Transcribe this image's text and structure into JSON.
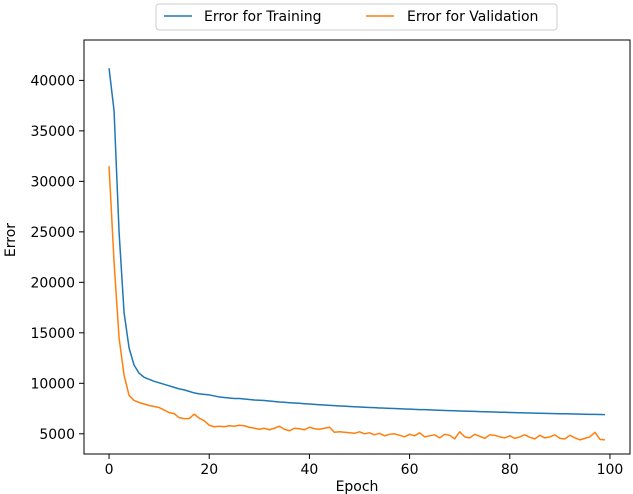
{
  "chart_data": {
    "type": "line",
    "xlabel": "Epoch",
    "ylabel": "Error",
    "xlim": [
      -5,
      104
    ],
    "ylim": [
      3000,
      44000
    ],
    "xticks": [
      0,
      20,
      40,
      60,
      80,
      100
    ],
    "yticks": [
      5000,
      10000,
      15000,
      20000,
      25000,
      30000,
      35000,
      40000
    ],
    "grid": false,
    "legend_position": "top-center",
    "series": [
      {
        "name": "Error for Training",
        "color": "#1f77b4",
        "x": [
          0,
          1,
          2,
          3,
          4,
          5,
          6,
          7,
          8,
          9,
          10,
          11,
          12,
          13,
          14,
          15,
          16,
          17,
          18,
          19,
          20,
          21,
          22,
          23,
          24,
          25,
          26,
          27,
          28,
          29,
          30,
          31,
          32,
          33,
          34,
          35,
          36,
          37,
          38,
          39,
          40,
          41,
          42,
          43,
          44,
          45,
          46,
          47,
          48,
          49,
          50,
          51,
          52,
          53,
          54,
          55,
          56,
          57,
          58,
          59,
          60,
          61,
          62,
          63,
          64,
          65,
          66,
          67,
          68,
          69,
          70,
          71,
          72,
          73,
          74,
          75,
          76,
          77,
          78,
          79,
          80,
          81,
          82,
          83,
          84,
          85,
          86,
          87,
          88,
          89,
          90,
          91,
          92,
          93,
          94,
          95,
          96,
          97,
          98,
          99
        ],
        "values": [
          41200,
          37000,
          25000,
          17000,
          13500,
          11800,
          11000,
          10600,
          10400,
          10200,
          10050,
          9900,
          9750,
          9600,
          9450,
          9350,
          9200,
          9050,
          8950,
          8900,
          8850,
          8750,
          8650,
          8600,
          8550,
          8500,
          8500,
          8450,
          8400,
          8350,
          8320,
          8300,
          8250,
          8200,
          8150,
          8120,
          8080,
          8050,
          8020,
          7980,
          7950,
          7920,
          7880,
          7850,
          7820,
          7790,
          7760,
          7740,
          7710,
          7680,
          7660,
          7630,
          7610,
          7590,
          7560,
          7540,
          7520,
          7500,
          7480,
          7460,
          7440,
          7420,
          7400,
          7390,
          7370,
          7350,
          7330,
          7310,
          7300,
          7280,
          7260,
          7250,
          7230,
          7220,
          7200,
          7190,
          7170,
          7160,
          7140,
          7130,
          7110,
          7100,
          7090,
          7070,
          7060,
          7050,
          7030,
          7020,
          7010,
          7000,
          6990,
          6980,
          6970,
          6960,
          6950,
          6940,
          6930,
          6920,
          6910,
          6900
        ]
      },
      {
        "name": "Error for Validation",
        "color": "#ff7f0e",
        "x": [
          0,
          1,
          2,
          3,
          4,
          5,
          6,
          7,
          8,
          9,
          10,
          11,
          12,
          13,
          14,
          15,
          16,
          17,
          18,
          19,
          20,
          21,
          22,
          23,
          24,
          25,
          26,
          27,
          28,
          29,
          30,
          31,
          32,
          33,
          34,
          35,
          36,
          37,
          38,
          39,
          40,
          41,
          42,
          43,
          44,
          45,
          46,
          47,
          48,
          49,
          50,
          51,
          52,
          53,
          54,
          55,
          56,
          57,
          58,
          59,
          60,
          61,
          62,
          63,
          64,
          65,
          66,
          67,
          68,
          69,
          70,
          71,
          72,
          73,
          74,
          75,
          76,
          77,
          78,
          79,
          80,
          81,
          82,
          83,
          84,
          85,
          86,
          87,
          88,
          89,
          90,
          91,
          92,
          93,
          94,
          95,
          96,
          97,
          98,
          99
        ],
        "values": [
          31500,
          22000,
          14500,
          10800,
          8800,
          8300,
          8100,
          7950,
          7800,
          7700,
          7600,
          7350,
          7100,
          7000,
          6600,
          6500,
          6500,
          6950,
          6550,
          6300,
          5850,
          5700,
          5750,
          5700,
          5800,
          5750,
          5850,
          5800,
          5650,
          5550,
          5450,
          5550,
          5400,
          5550,
          5750,
          5450,
          5300,
          5550,
          5500,
          5400,
          5650,
          5500,
          5450,
          5550,
          5650,
          5150,
          5200,
          5150,
          5100,
          5050,
          5200,
          5000,
          5100,
          4900,
          5050,
          4800,
          4950,
          5000,
          4850,
          4700,
          4950,
          4800,
          5100,
          4700,
          4800,
          4900,
          4600,
          4950,
          4850,
          4500,
          5200,
          4700,
          4600,
          4950,
          4750,
          4550,
          4900,
          4850,
          4700,
          4600,
          4800,
          4550,
          4700,
          4900,
          4650,
          4500,
          4850,
          4600,
          4700,
          4900,
          4550,
          4500,
          4850,
          4600,
          4400,
          4550,
          4700,
          5150,
          4450,
          4400
        ]
      }
    ]
  }
}
